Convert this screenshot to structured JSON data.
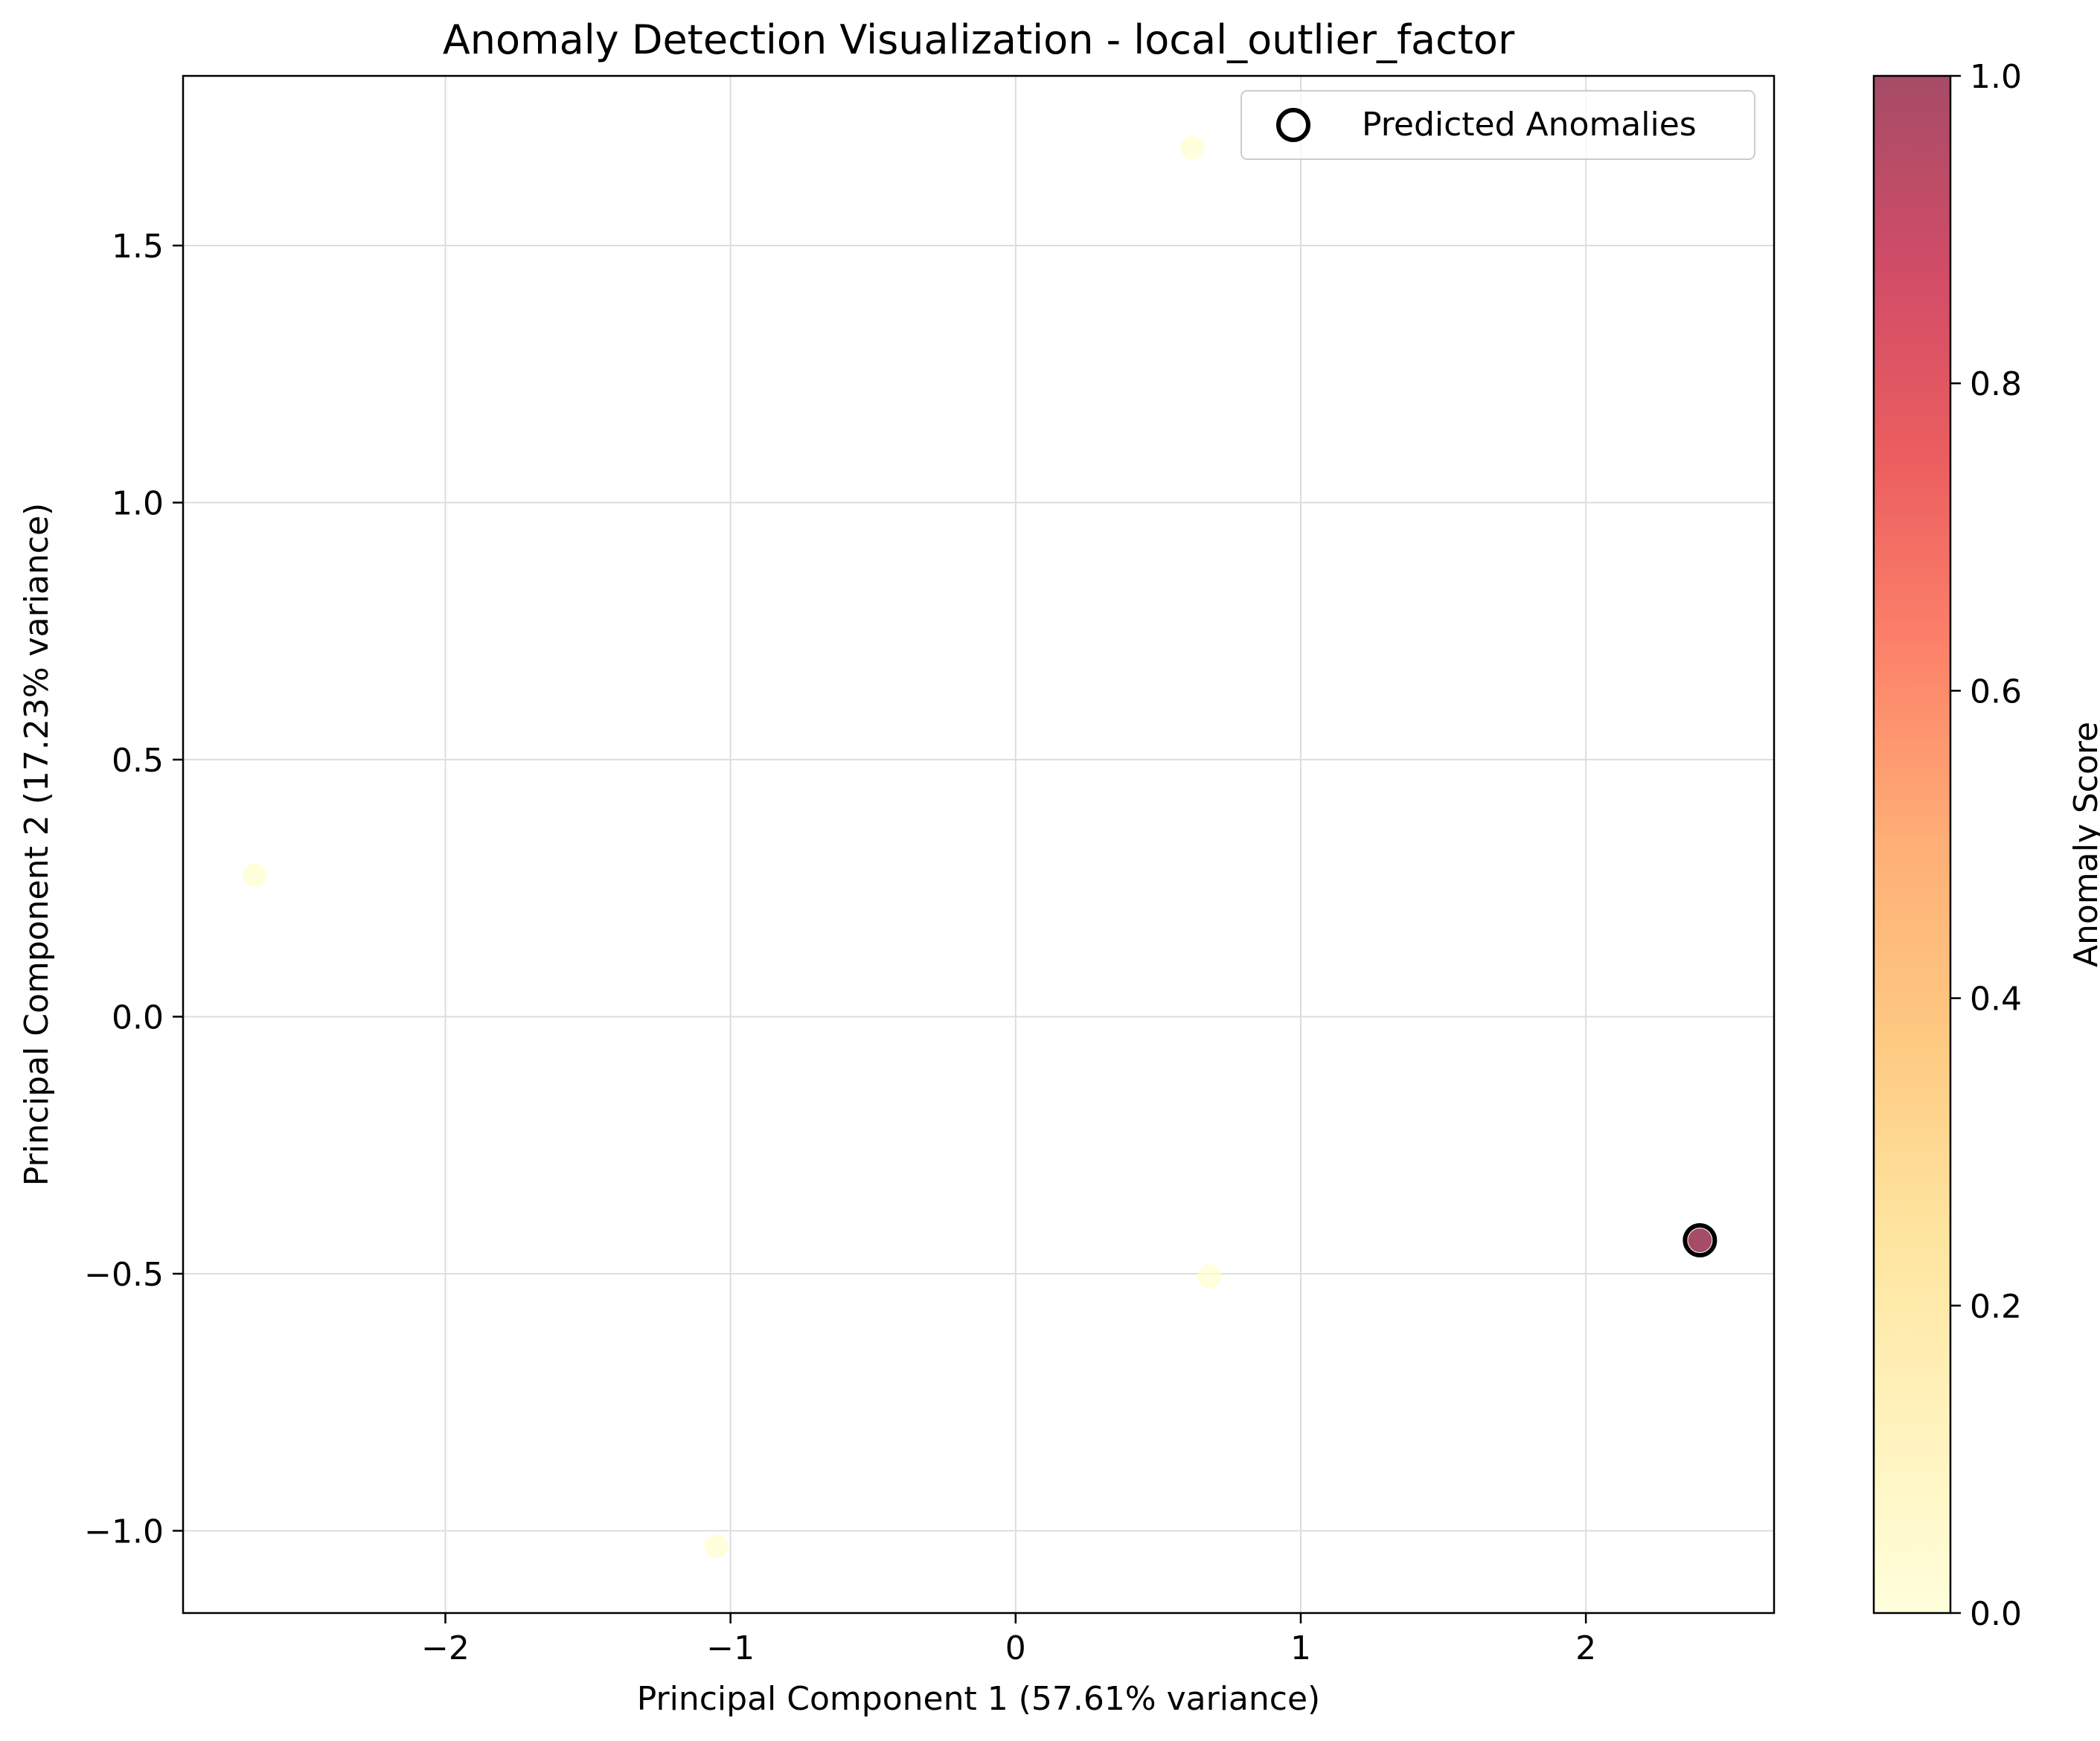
{
  "chart_data": {
    "type": "scatter",
    "title": "Anomaly Detection Visualization - local_outlier_factor",
    "xlabel": "Principal Component 1 (57.61% variance)",
    "ylabel": "Principal Component 2 (17.23% variance)",
    "xlim": [
      -2.92,
      2.66
    ],
    "ylim": [
      -1.16,
      1.83
    ],
    "xticks": [
      -2,
      -1,
      0,
      1,
      2
    ],
    "xtick_labels": [
      "−2",
      "−1",
      "0",
      "1",
      "2"
    ],
    "yticks": [
      -1.0,
      -0.5,
      0.0,
      0.5,
      1.0,
      1.5
    ],
    "ytick_labels": [
      "−1.0",
      "−0.5",
      "0.0",
      "0.5",
      "1.0",
      "1.5"
    ],
    "grid": true,
    "legend": {
      "placement": "upper right",
      "entries": [
        "Predicted Anomalies"
      ]
    },
    "colorbar": {
      "label": "Anomaly Score",
      "colormap": "YlOrRd",
      "range": [
        0.0,
        1.0
      ],
      "ticks": [
        0.0,
        0.2,
        0.4,
        0.6,
        0.8,
        1.0
      ],
      "tick_labels": [
        "0.0",
        "0.2",
        "0.4",
        "0.6",
        "0.8",
        "1.0"
      ],
      "alpha": 0.7
    },
    "points": [
      {
        "x": 0.62,
        "y": 1.69,
        "score": 0.0,
        "anomaly": false
      },
      {
        "x": -2.67,
        "y": 0.275,
        "score": 0.0,
        "anomaly": false
      },
      {
        "x": 0.68,
        "y": -0.505,
        "score": 0.0,
        "anomaly": false
      },
      {
        "x": -1.05,
        "y": -1.03,
        "score": 0.0,
        "anomaly": false
      },
      {
        "x": 2.4,
        "y": -0.435,
        "score": 1.0,
        "anomaly": true
      }
    ]
  }
}
